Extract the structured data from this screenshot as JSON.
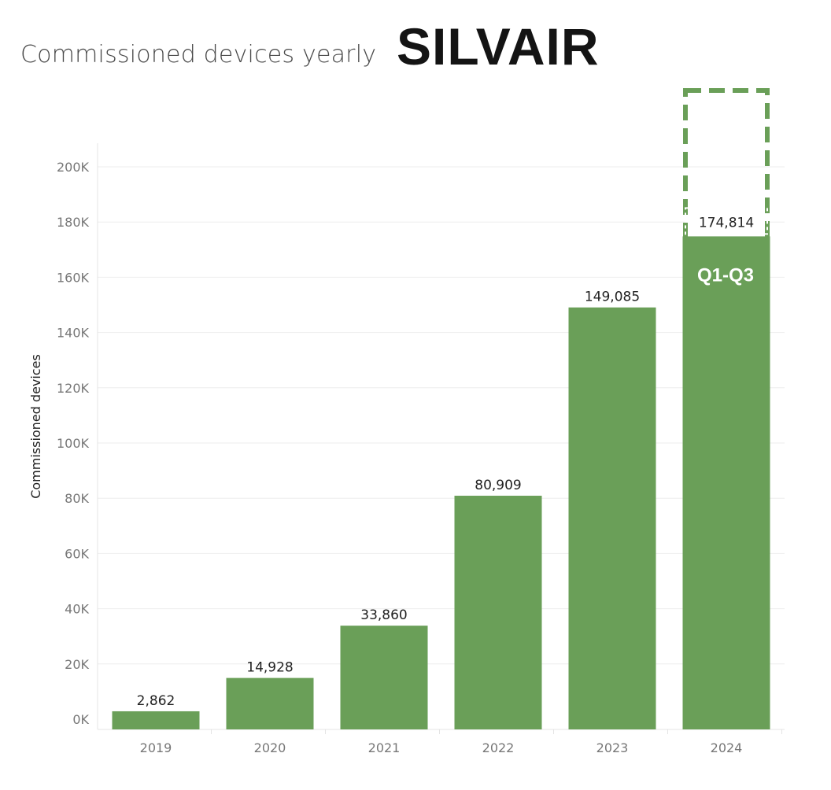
{
  "header": {
    "title": "Commissioned devices yearly",
    "logo_text": "SILVAIR"
  },
  "chart_data": {
    "type": "bar",
    "title": "Commissioned devices yearly",
    "xlabel": "",
    "ylabel": "Commissioned devices",
    "categories": [
      "2019",
      "2020",
      "2021",
      "2022",
      "2023",
      "2024"
    ],
    "values": [
      2862,
      14928,
      33860,
      80909,
      149085,
      174814
    ],
    "value_labels": [
      "2,862",
      "14,928",
      "33,860",
      "80,909",
      "149,085",
      "174,814"
    ],
    "ylim": [
      0,
      210000
    ],
    "yticks": [
      0,
      20000,
      40000,
      60000,
      80000,
      100000,
      120000,
      140000,
      160000,
      180000,
      200000
    ],
    "ytick_labels": [
      "0K",
      "20K",
      "40K",
      "60K",
      "80K",
      "100K",
      "120K",
      "140K",
      "160K",
      "180K",
      "200K"
    ],
    "grid": true,
    "bar_color": "#6a9f58",
    "annotation": {
      "category": "2024",
      "text": "Q1-Q3",
      "note": "dashed outline above the 2024 bar indicates an incomplete year"
    }
  }
}
